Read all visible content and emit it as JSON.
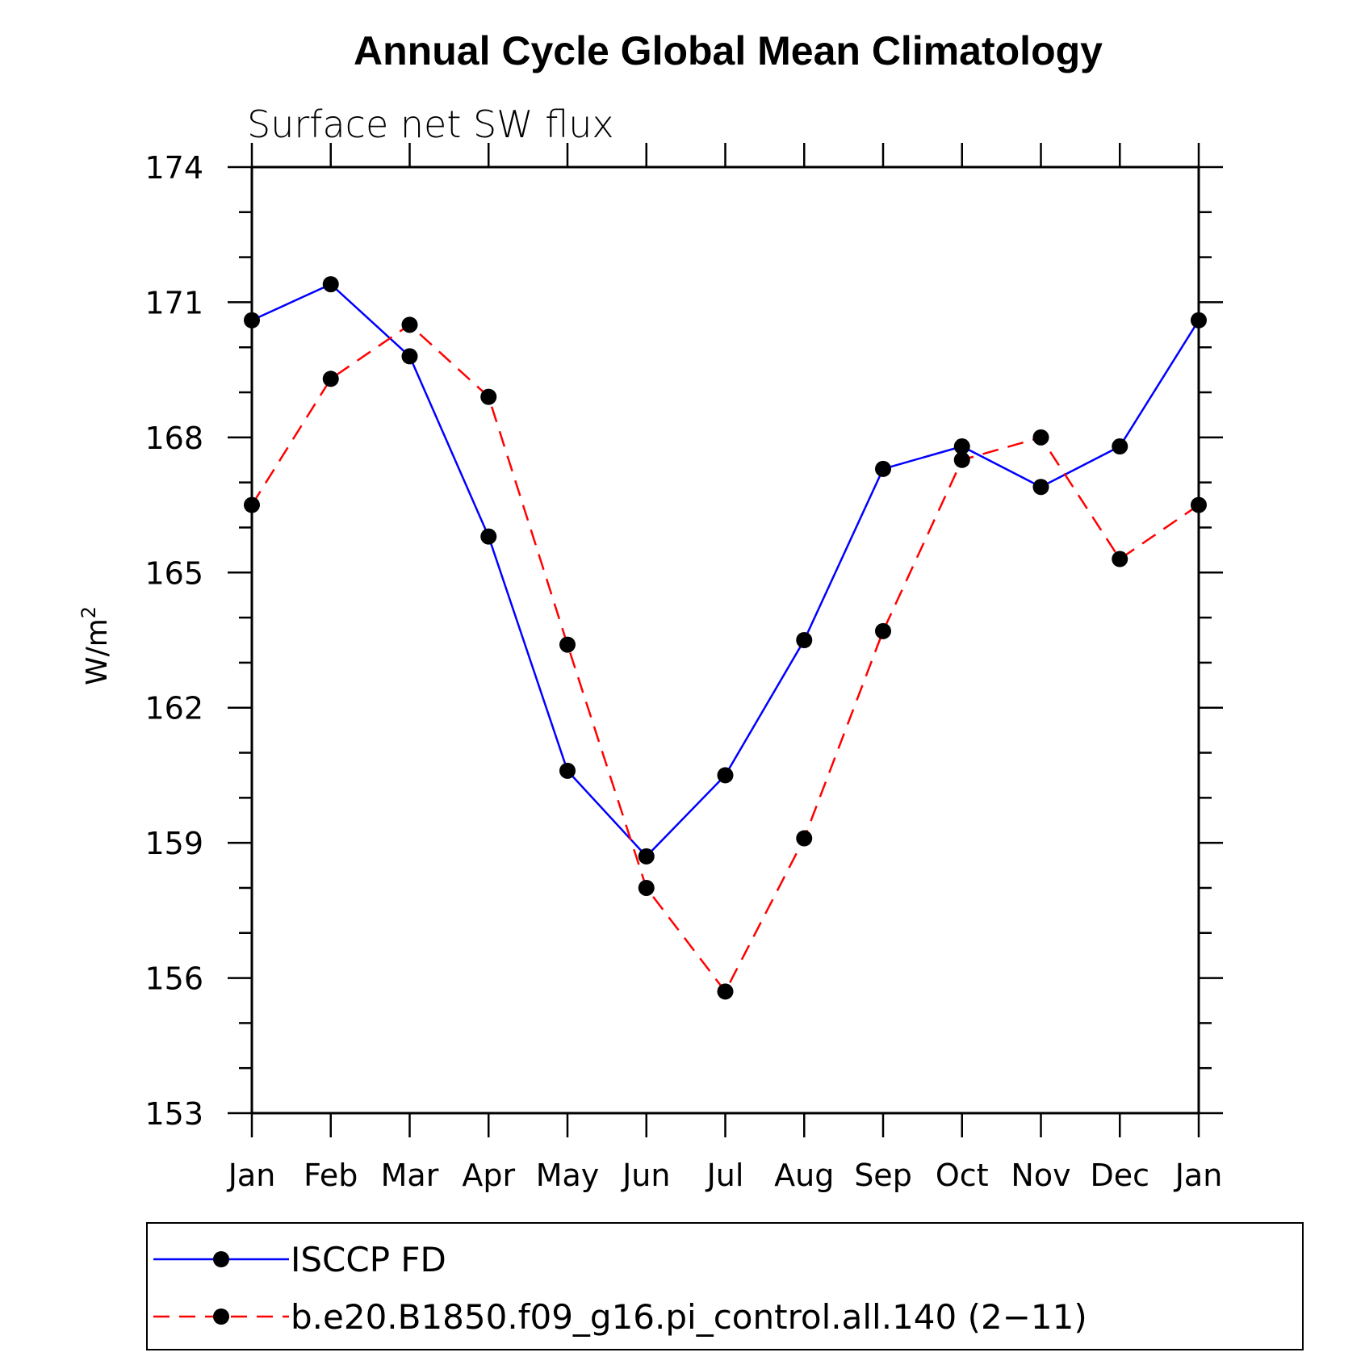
{
  "chart_data": {
    "type": "line",
    "title": "Annual Cycle Global Mean Climatology",
    "subtitle": "Surface net SW flux",
    "ylabel": "W/m",
    "ylabel_sup": "2",
    "categories": [
      "Jan",
      "Feb",
      "Mar",
      "Apr",
      "May",
      "Jun",
      "Jul",
      "Aug",
      "Sep",
      "Oct",
      "Nov",
      "Dec",
      "Jan"
    ],
    "ylim": [
      153,
      174
    ],
    "yticks": [
      153,
      156,
      159,
      162,
      165,
      168,
      171,
      174
    ],
    "series": [
      {
        "name": "ISCCP FD",
        "color": "#0000ff",
        "dash": "solid",
        "values": [
          170.6,
          171.4,
          169.8,
          165.8,
          160.6,
          158.7,
          160.5,
          163.5,
          167.3,
          167.8,
          166.9,
          167.8,
          170.6
        ]
      },
      {
        "name": "b.e20.B1850.f09_g16.pi_control.all.140 (2−11)",
        "color": "#ff0000",
        "dash": "dashed",
        "values": [
          166.5,
          169.3,
          170.5,
          168.9,
          163.4,
          158.0,
          155.7,
          159.1,
          163.7,
          167.5,
          168.0,
          165.3,
          166.5
        ]
      }
    ]
  }
}
